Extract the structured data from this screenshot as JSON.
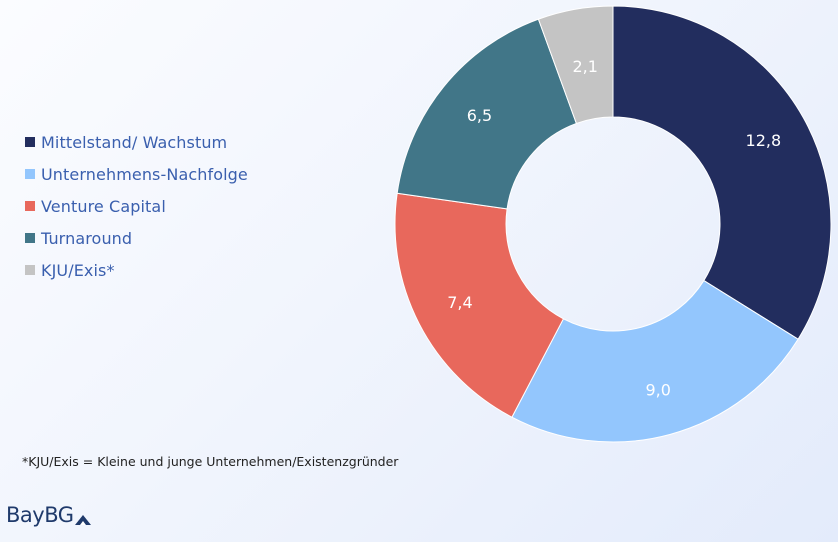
{
  "chart_data": {
    "type": "pie",
    "categories": [
      "Mittelstand/ Wachstum",
      "Unternehmens-Nachfolge",
      "Venture Capital",
      "Turnaround",
      "KJU/Exis*"
    ],
    "values": [
      12.8,
      9.0,
      7.4,
      6.5,
      2.1
    ],
    "value_labels": [
      "12,8",
      "9,0",
      "7,4",
      "6,5",
      "2,1"
    ],
    "colors": [
      "#222d5e",
      "#93c6fd",
      "#e8685c",
      "#417688",
      "#c4c4c4"
    ],
    "label_colors": [
      "#ffffff",
      "#ffffff",
      "#ffffff",
      "#ffffff",
      "#ffffff"
    ],
    "donut": true,
    "legend_position": "left"
  },
  "footnote": "*KJU/Exis = Kleine und junge Unternehmen/Existenzgründer",
  "logo": {
    "text": "BayBG"
  }
}
